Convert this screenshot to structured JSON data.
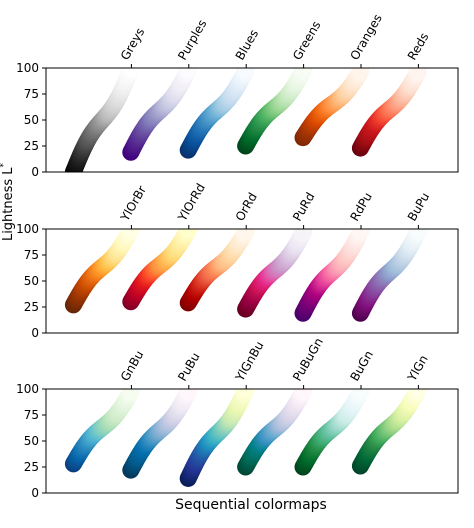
{
  "chart_data": {
    "type": "scatter",
    "title": "Sequential colormaps",
    "ylabel": "Lightness $L^*$",
    "ylabel_display": "Lightness L",
    "ylabel_sup": "*",
    "ylim": [
      0,
      100
    ],
    "yticks": [
      0,
      25,
      50,
      75,
      100
    ],
    "grid": false,
    "panels": [
      {
        "colormaps": [
          {
            "name": "Greys",
            "stops": [
              "#ffffff",
              "#f0f0f0",
              "#d9d9d9",
              "#bdbdbd",
              "#969696",
              "#737373",
              "#525252",
              "#252525",
              "#000000"
            ],
            "l_min": 0,
            "l_max": 100
          },
          {
            "name": "Purples",
            "stops": [
              "#fcfbfd",
              "#efedf5",
              "#dadaeb",
              "#bcbddc",
              "#9e9ac8",
              "#807dba",
              "#6a51a3",
              "#54278f",
              "#3f007d"
            ],
            "l_min": 19,
            "l_max": 99
          },
          {
            "name": "Blues",
            "stops": [
              "#f7fbff",
              "#deebf7",
              "#c6dbef",
              "#9ecae1",
              "#6baed6",
              "#4292c6",
              "#2171b5",
              "#08519c",
              "#08306b"
            ],
            "l_min": 21,
            "l_max": 98
          },
          {
            "name": "Greens",
            "stops": [
              "#f7fcf5",
              "#e5f5e0",
              "#c7e9c0",
              "#a1d99b",
              "#74c476",
              "#41ab5d",
              "#238b45",
              "#006d2c",
              "#00441b"
            ],
            "l_min": 25,
            "l_max": 98
          },
          {
            "name": "Oranges",
            "stops": [
              "#fff5eb",
              "#fee6ce",
              "#fdd0a2",
              "#fdae6b",
              "#fd8d3c",
              "#f16913",
              "#d94801",
              "#a63603",
              "#7f2704"
            ],
            "l_min": 33,
            "l_max": 97
          },
          {
            "name": "Reds",
            "stops": [
              "#fff5f0",
              "#fee0d2",
              "#fcbba1",
              "#fc9272",
              "#fb6a4a",
              "#ef3b2c",
              "#cb181d",
              "#a50f15",
              "#67000d"
            ],
            "l_min": 23,
            "l_max": 97
          }
        ]
      },
      {
        "colormaps": [
          {
            "name": "YlOrBr",
            "stops": [
              "#ffffe5",
              "#fff7bc",
              "#fee391",
              "#fec44f",
              "#fe9929",
              "#ec7014",
              "#cc4c02",
              "#993404",
              "#662506"
            ],
            "l_min": 27,
            "l_max": 100
          },
          {
            "name": "YlOrRd",
            "stops": [
              "#ffffcc",
              "#ffeda0",
              "#fed976",
              "#feb24c",
              "#fd8d3c",
              "#fc4e2a",
              "#e31a1c",
              "#bd0026",
              "#800026"
            ],
            "l_min": 30,
            "l_max": 100
          },
          {
            "name": "OrRd",
            "stops": [
              "#fff7ec",
              "#fee8c8",
              "#fdd49e",
              "#fdbb84",
              "#fc8d59",
              "#ef6548",
              "#d7301f",
              "#b30000",
              "#7f0000"
            ],
            "l_min": 29,
            "l_max": 98
          },
          {
            "name": "PuRd",
            "stops": [
              "#f7f4f9",
              "#e7e1ef",
              "#d4b9da",
              "#c994c7",
              "#df65b0",
              "#e7298a",
              "#ce1256",
              "#980043",
              "#67001f"
            ],
            "l_min": 23,
            "l_max": 97
          },
          {
            "name": "RdPu",
            "stops": [
              "#fff7f3",
              "#fde0dd",
              "#fcc5c0",
              "#fa9fb5",
              "#f768a1",
              "#dd3497",
              "#ae017e",
              "#7a0177",
              "#49006a"
            ],
            "l_min": 19,
            "l_max": 98
          },
          {
            "name": "BuPu",
            "stops": [
              "#f7fcfd",
              "#e0ecf4",
              "#bfd3e6",
              "#9ebcda",
              "#8c96c6",
              "#8c6bb1",
              "#88419d",
              "#810f7c",
              "#4d004b"
            ],
            "l_min": 19,
            "l_max": 98
          }
        ]
      },
      {
        "colormaps": [
          {
            "name": "GnBu",
            "stops": [
              "#f7fcf0",
              "#e0f3db",
              "#ccebc5",
              "#a8ddb5",
              "#7bccc4",
              "#4eb3d3",
              "#2b8cbe",
              "#0868ac",
              "#084081"
            ],
            "l_min": 28,
            "l_max": 98
          },
          {
            "name": "PuBu",
            "stops": [
              "#fff7fb",
              "#ece7f2",
              "#d0d1e6",
              "#a6bddb",
              "#74a9cf",
              "#3690c0",
              "#0570b0",
              "#045a8d",
              "#023858"
            ],
            "l_min": 22,
            "l_max": 98
          },
          {
            "name": "YlGnBu",
            "stops": [
              "#ffffd9",
              "#edf8b1",
              "#c7e9b4",
              "#7fcdbb",
              "#41b6c4",
              "#1d91c0",
              "#225ea8",
              "#253494",
              "#081d58"
            ],
            "l_min": 14,
            "l_max": 100
          },
          {
            "name": "PuBuGn",
            "stops": [
              "#fff7fb",
              "#ece2f0",
              "#d0d1e6",
              "#a6bddb",
              "#67a9cf",
              "#3690c0",
              "#02818a",
              "#016c59",
              "#014636"
            ],
            "l_min": 25,
            "l_max": 98
          },
          {
            "name": "BuGn",
            "stops": [
              "#f7fcfd",
              "#e5f5f9",
              "#ccece6",
              "#99d8c9",
              "#66c2a4",
              "#41ae76",
              "#238b45",
              "#006d2c",
              "#00441b"
            ],
            "l_min": 25,
            "l_max": 98
          },
          {
            "name": "YlGn",
            "stops": [
              "#ffffe5",
              "#f7fcb9",
              "#d9f0a3",
              "#addd8e",
              "#78c679",
              "#41ab5d",
              "#238443",
              "#006837",
              "#004529"
            ],
            "l_min": 26,
            "l_max": 100
          }
        ]
      }
    ]
  }
}
